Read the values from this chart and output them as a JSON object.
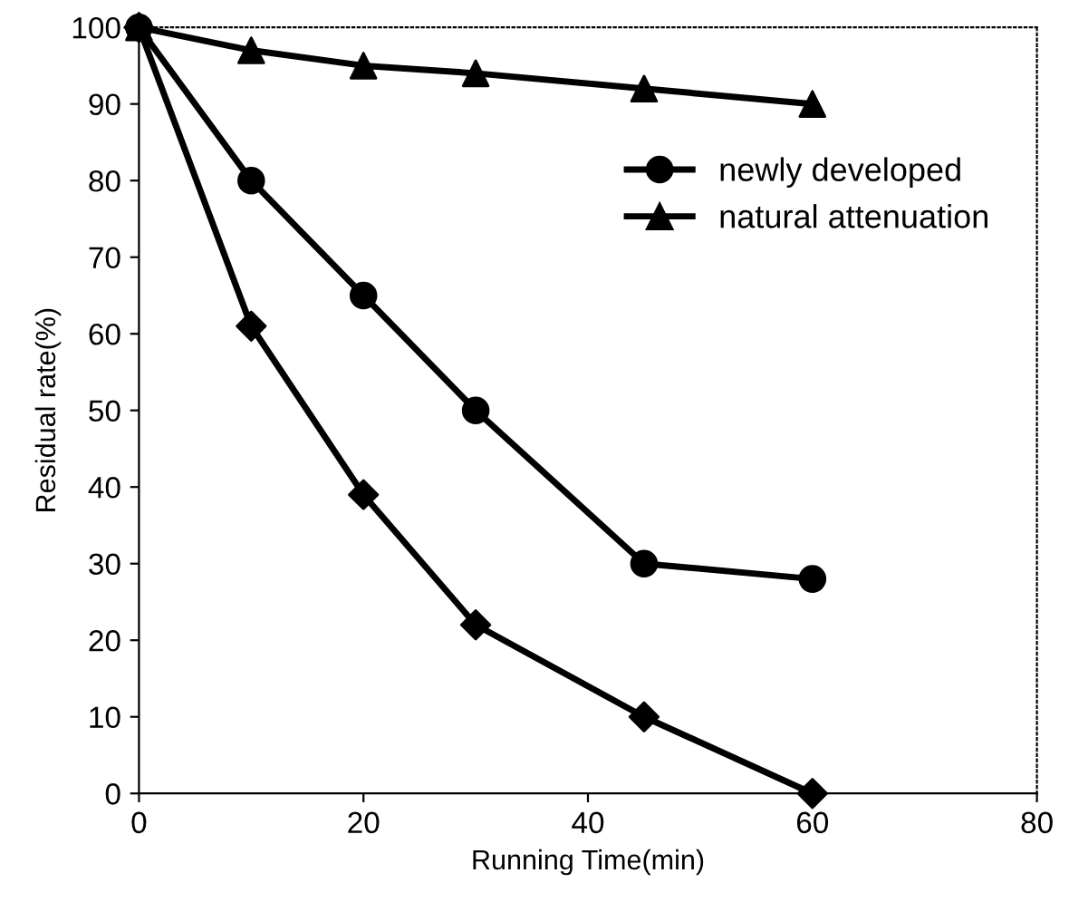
{
  "chart_data": {
    "type": "line",
    "xlabel": "Running Time(min)",
    "ylabel": "Residual rate(%)",
    "x": [
      0,
      10,
      20,
      30,
      45,
      60
    ],
    "series": [
      {
        "name": "newly developed",
        "color": "#000000",
        "marker": "circle",
        "values": [
          100,
          80,
          65,
          50,
          30,
          28
        ]
      },
      {
        "name": "natural attenuation",
        "color": "#000000",
        "marker": "triangle",
        "values": [
          100,
          97,
          95,
          94,
          92,
          90
        ]
      },
      {
        "color": "#000000",
        "marker": "diamond",
        "values": [
          100,
          61,
          39,
          22,
          10,
          0
        ]
      }
    ],
    "xlim": [
      0,
      80
    ],
    "xticks": [
      0,
      20,
      40,
      60,
      80
    ],
    "ylim": [
      0,
      100
    ],
    "yticks": [
      0,
      10,
      20,
      30,
      40,
      50,
      60,
      70,
      80,
      90,
      100
    ],
    "grid": false,
    "legend": "right",
    "line_style": "solid"
  }
}
